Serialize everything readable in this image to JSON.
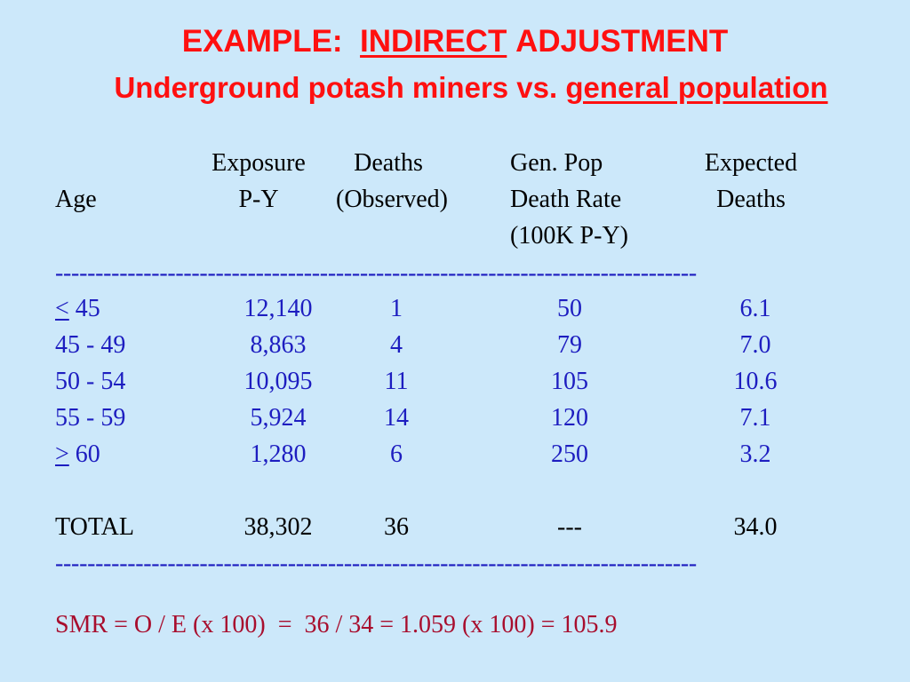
{
  "title": {
    "part1": "EXAMPLE:",
    "part2": "INDIRECT",
    "part3": "ADJUSTMENT",
    "line2_part1": "Underground potash miners vs.",
    "line2_part2": "general population"
  },
  "headers": {
    "age": "Age",
    "exposure_1": "Exposure",
    "exposure_2": "P-Y",
    "deaths_1": "Deaths",
    "deaths_2": "(Observed)",
    "genpop_1": "Gen. Pop",
    "genpop_2": "Death Rate",
    "genpop_3": "(100K P-Y)",
    "expected_1": "Expected",
    "expected_2": "Deaths"
  },
  "separator": "--------------------------------------------------------------------------------",
  "rows": [
    {
      "age_sym": "<",
      "age": "45",
      "exposure": "12,140",
      "deaths": "1",
      "rate": "50",
      "expected": "6.1"
    },
    {
      "age": "45 - 49",
      "exposure": "8,863",
      "deaths": "4",
      "rate": "79",
      "expected": "7.0"
    },
    {
      "age": "50 - 54",
      "exposure": "10,095",
      "deaths": "11",
      "rate": "105",
      "expected": "10.6"
    },
    {
      "age": "55 - 59",
      "exposure": "5,924",
      "deaths": "14",
      "rate": "120",
      "expected": "7.1"
    },
    {
      "age_sym": ">",
      "age": "60",
      "exposure": "1,280",
      "deaths": "6",
      "rate": "250",
      "expected": "3.2"
    }
  ],
  "total": {
    "label": "TOTAL",
    "exposure": "38,302",
    "deaths": "36",
    "rate": "---",
    "expected": "34.0"
  },
  "smr": "SMR = O / E (x 100)  =  36 / 34 = 1.059 (x 100) = 105.9",
  "colors": {
    "background": "#cce8fa",
    "title": "#ff1010",
    "data": "#1d1dc0",
    "smr": "#a80e2e"
  }
}
